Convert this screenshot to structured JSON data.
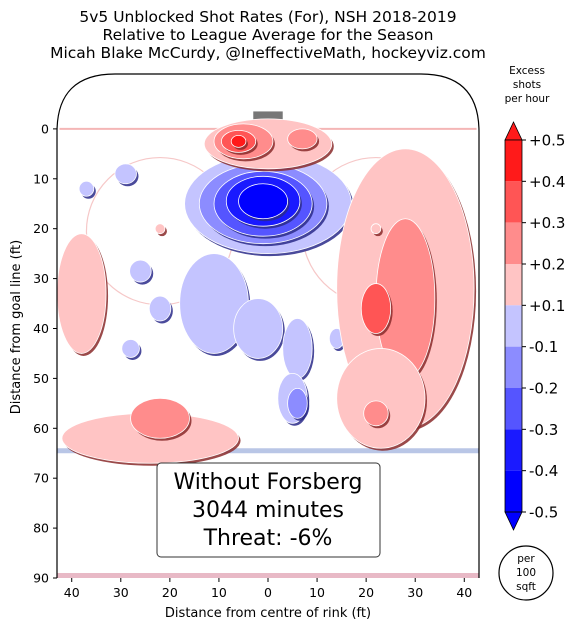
{
  "chart_data": {
    "type": "heatmap",
    "title_lines": [
      "5v5 Unblocked Shot Rates (For), NSH 2018-2019",
      "Relative to League Average for the Season",
      "Micah Blake McCurdy, @IneffectiveMath, hockeyviz.com"
    ],
    "xlabel": "Distance from centre of rink (ft)",
    "ylabel": "Distance from goal line (ft)",
    "xlim": [
      -43,
      43
    ],
    "ylim": [
      90,
      -11
    ],
    "x_ticks": [
      40,
      30,
      20,
      10,
      0,
      10,
      20,
      30,
      40
    ],
    "x_tick_values": [
      -40,
      -30,
      -20,
      -10,
      0,
      10,
      20,
      30,
      40
    ],
    "y_ticks": [
      0,
      10,
      20,
      30,
      40,
      50,
      60,
      70,
      80,
      90
    ],
    "colorbar": {
      "title_lines": [
        "Excess",
        "shots",
        "per hour"
      ],
      "tick_labels": [
        "+0.5",
        "+0.4",
        "+0.3",
        "+0.2",
        "+0.1",
        "-0.1",
        "-0.2",
        "-0.3",
        "-0.4",
        "-0.5"
      ],
      "unit_lines": [
        "per",
        "100",
        "sqft"
      ],
      "colors": {
        "pos5": "#ff1a1a",
        "pos4": "#ff5555",
        "pos3": "#ff8c8c",
        "pos2": "#ffc4c4",
        "pos1": "#ffffff",
        "neg1": "#c4c4ff",
        "neg2": "#8c8cff",
        "neg3": "#5555ff",
        "neg4": "#1a1aff",
        "neg5": "#0000ff"
      }
    },
    "annotation": {
      "lines": [
        "Without Forsberg",
        "3044 minutes",
        "Threat: -6%"
      ],
      "minutes": 3044,
      "threat_pct": -6
    },
    "regions": [
      {
        "x": 0,
        "y": 15,
        "rx": 17,
        "ry": 10,
        "level": -1
      },
      {
        "x": -1,
        "y": 15,
        "rx": 13,
        "ry": 8,
        "level": -2
      },
      {
        "x": -1,
        "y": 15,
        "rx": 10,
        "ry": 6.5,
        "level": -3
      },
      {
        "x": -1,
        "y": 14.5,
        "rx": 7.5,
        "ry": 5,
        "level": -4
      },
      {
        "x": -1,
        "y": 14.5,
        "rx": 5,
        "ry": 3.5,
        "level": -5
      },
      {
        "x": -11,
        "y": 35,
        "rx": 7,
        "ry": 10,
        "level": -1
      },
      {
        "x": -2,
        "y": 40,
        "rx": 5,
        "ry": 6,
        "level": -1
      },
      {
        "x": 6,
        "y": 44,
        "rx": 3,
        "ry": 6,
        "level": -1
      },
      {
        "x": -26,
        "y": 28.5,
        "rx": 2.2,
        "ry": 2.2,
        "level": -1
      },
      {
        "x": -29,
        "y": 9,
        "rx": 2.2,
        "ry": 2,
        "level": -1
      },
      {
        "x": -37,
        "y": 12,
        "rx": 1.5,
        "ry": 1.5,
        "level": -1
      },
      {
        "x": -28,
        "y": 44,
        "rx": 1.8,
        "ry": 1.8,
        "level": -1
      },
      {
        "x": -22,
        "y": 36,
        "rx": 2.2,
        "ry": 2.5,
        "level": -1
      },
      {
        "x": 5,
        "y": 54,
        "rx": 3,
        "ry": 5,
        "level": -1
      },
      {
        "x": 6,
        "y": 55,
        "rx": 2,
        "ry": 3,
        "level": -2
      },
      {
        "x": 14,
        "y": 42,
        "rx": 1.5,
        "ry": 2,
        "level": -1
      },
      {
        "x": 0,
        "y": 3,
        "rx": 13,
        "ry": 5,
        "level": 1
      },
      {
        "x": -5,
        "y": 2.5,
        "rx": 6,
        "ry": 3.5,
        "level": 2
      },
      {
        "x": -6,
        "y": 2.5,
        "rx": 3.5,
        "ry": 2.2,
        "level": 3
      },
      {
        "x": -6,
        "y": 2.5,
        "rx": 1.5,
        "ry": 1.2,
        "level": 5
      },
      {
        "x": 7,
        "y": 2,
        "rx": 3,
        "ry": 2,
        "level": 2
      },
      {
        "x": 28,
        "y": 32,
        "rx": 14,
        "ry": 28,
        "level": 1
      },
      {
        "x": 28,
        "y": 34,
        "rx": 6,
        "ry": 16,
        "level": 2
      },
      {
        "x": 22,
        "y": 36,
        "rx": 3,
        "ry": 5,
        "level": 3
      },
      {
        "x": -38,
        "y": 33,
        "rx": 5,
        "ry": 12,
        "level": 1
      },
      {
        "x": -24,
        "y": 62,
        "rx": 18,
        "ry": 5,
        "level": 1
      },
      {
        "x": -22,
        "y": 58,
        "rx": 6,
        "ry": 4,
        "level": 2
      },
      {
        "x": 23,
        "y": 54,
        "rx": 9,
        "ry": 10,
        "level": 1
      },
      {
        "x": 22,
        "y": 57,
        "rx": 2.5,
        "ry": 2.5,
        "level": 2
      },
      {
        "x": -22,
        "y": 20,
        "rx": 1,
        "ry": 1,
        "level": 1
      },
      {
        "x": 22,
        "y": 20,
        "rx": 1,
        "ry": 1,
        "level": 1
      }
    ]
  }
}
